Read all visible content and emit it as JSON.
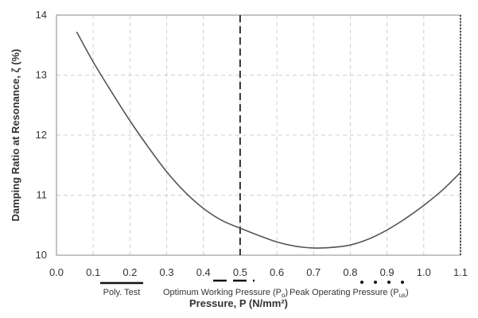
{
  "chart_data": {
    "type": "line",
    "title": "",
    "xlabel": "Pressure, P (N/mm²)",
    "ylabel": "Damping Ratio at Resonance, ζ (%)",
    "xlim": [
      0.0,
      1.1
    ],
    "ylim": [
      10.0,
      14.0
    ],
    "x_ticks": [
      "0.0",
      "0.1",
      "0.2",
      "0.3",
      "0.4",
      "0.5",
      "0.6",
      "0.7",
      "0.8",
      "0.9",
      "1.0",
      "1.1"
    ],
    "y_ticks": [
      "10",
      "11",
      "12",
      "13",
      "14"
    ],
    "grid": "dashed",
    "series": [
      {
        "x": [
          0.055,
          0.1,
          0.15,
          0.2,
          0.25,
          0.3,
          0.35,
          0.4,
          0.45,
          0.5,
          0.55,
          0.6,
          0.65,
          0.7,
          0.75,
          0.8,
          0.85,
          0.9,
          0.95,
          1.0,
          1.05,
          1.1
        ],
        "y": [
          13.72,
          13.22,
          12.72,
          12.24,
          11.8,
          11.39,
          11.05,
          10.78,
          10.58,
          10.45,
          10.33,
          10.22,
          10.15,
          10.12,
          10.13,
          10.17,
          10.27,
          10.42,
          10.61,
          10.83,
          11.08,
          11.38
        ],
        "color": "#555555"
      }
    ],
    "reference_lines": [
      {
        "x": 0.5,
        "style": "dashed",
        "color": "#333333"
      },
      {
        "x": 1.1,
        "style": "dotted",
        "color": "#333333"
      }
    ],
    "legend": [
      {
        "label": "Poly. Test",
        "style": "solid"
      },
      {
        "label": "Optimum Working Pressure (P",
        "sub": "o",
        "tail": ")",
        "style": "dashed"
      },
      {
        "label": "Peak Operating Pressure (P",
        "sub": "us",
        "tail": ")",
        "style": "dotted"
      }
    ],
    "legend_placement": "bottom"
  }
}
